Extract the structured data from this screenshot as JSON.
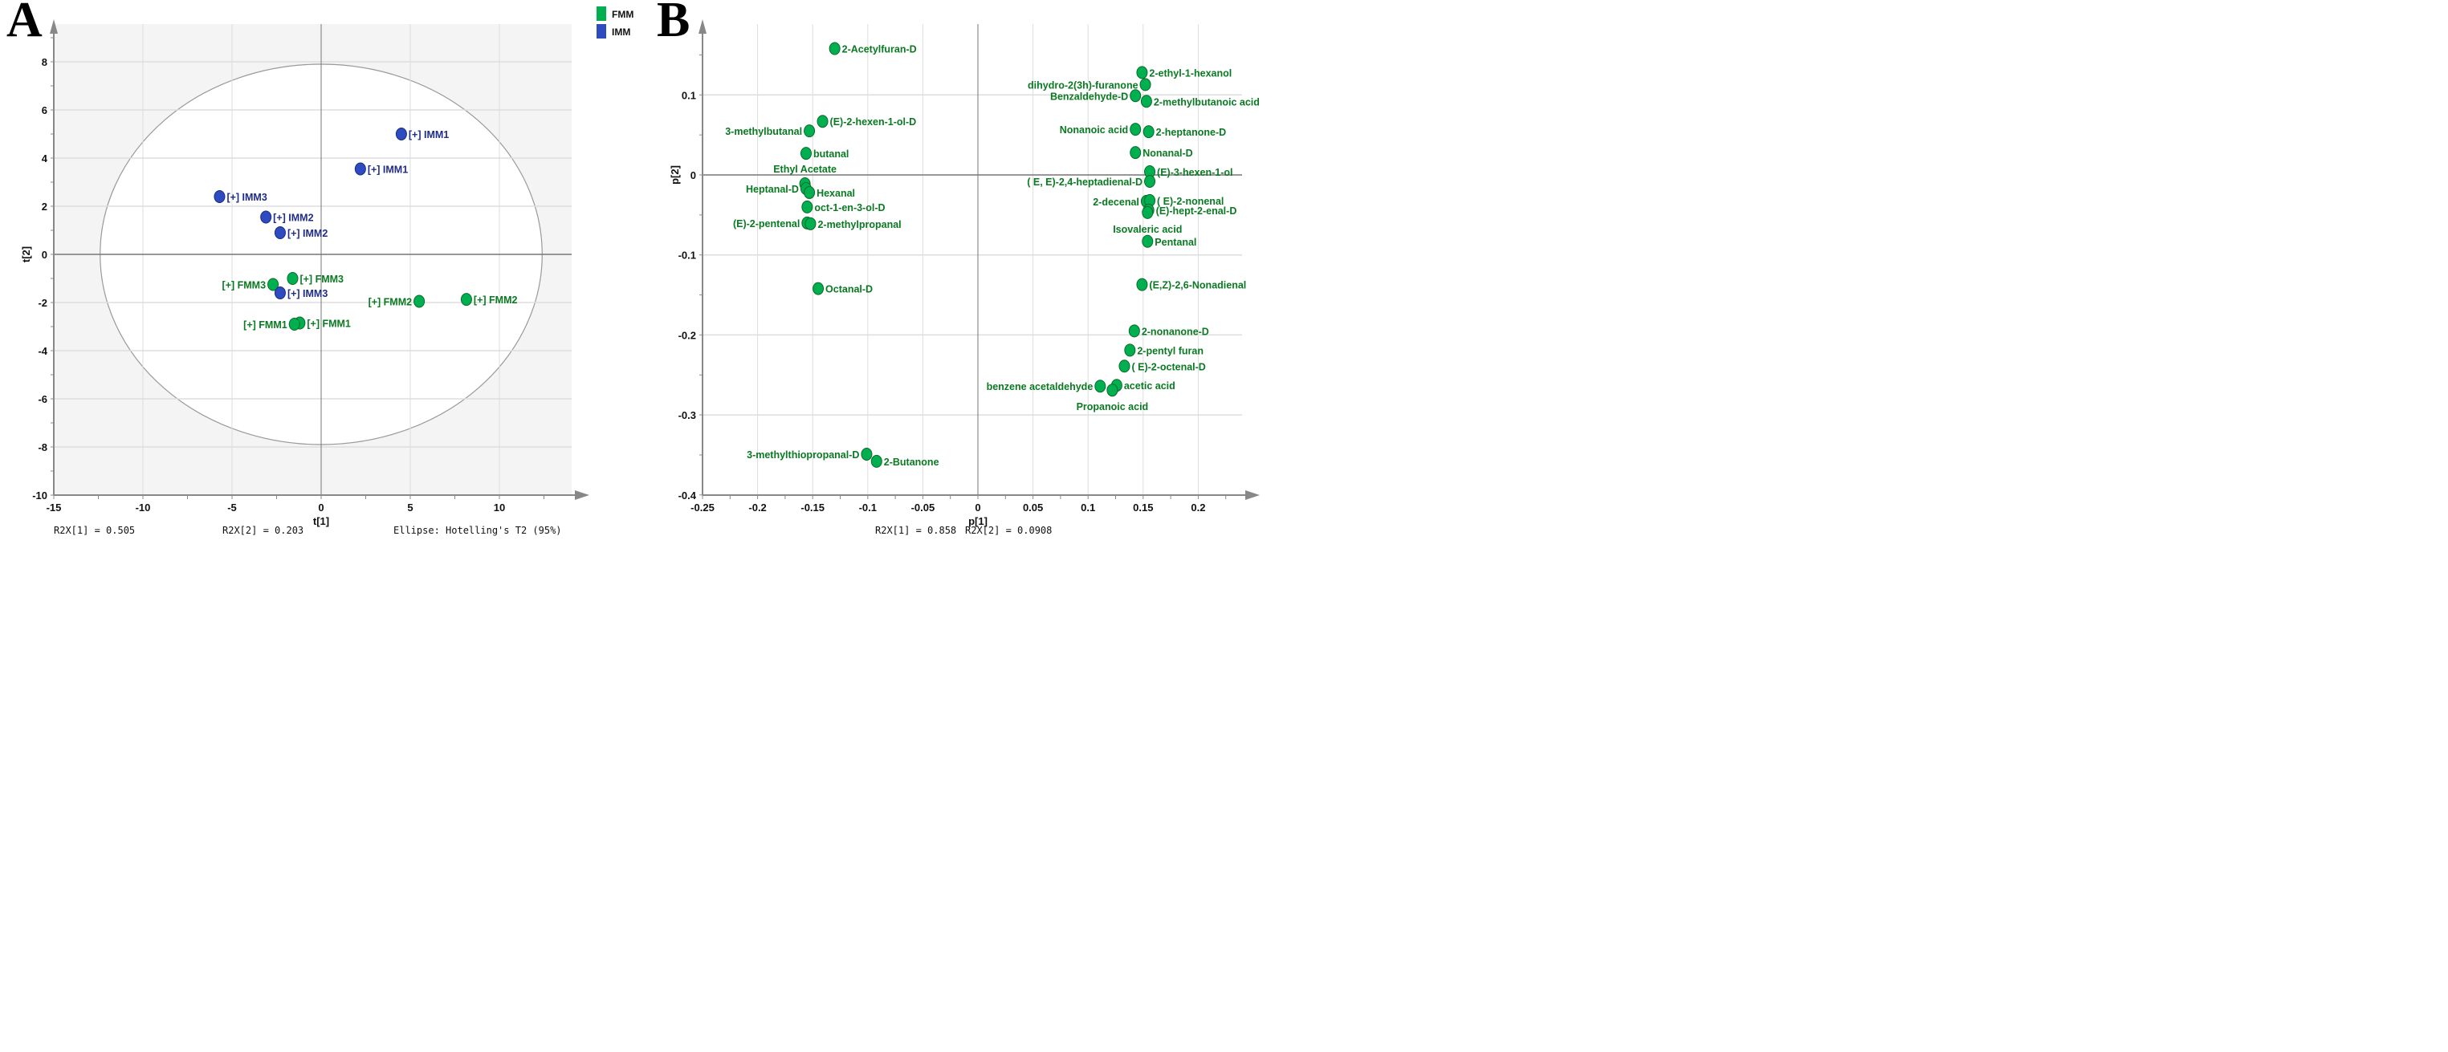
{
  "chart_data": [
    {
      "panel": "A",
      "type": "scatter",
      "title": "",
      "xlabel": "t[1]",
      "ylabel": "t[2]",
      "xlim": [
        -15,
        14.8
      ],
      "ylim": [
        -10,
        9.4
      ],
      "xticks": [
        -15,
        -10,
        -5,
        0,
        5,
        10
      ],
      "yticks": [
        -10,
        -8,
        -6,
        -4,
        -2,
        0,
        2,
        4,
        6,
        8
      ],
      "grid": true,
      "ellipse": {
        "label": "Ellipse: Hotelling's T2 (95%)",
        "rx": 12.4,
        "ry": 7.9
      },
      "stats": [
        "R2X[1] = 0.505",
        "R2X[2] = 0.203"
      ],
      "legend": {
        "position": "top-right",
        "entries": [
          {
            "name": "FMM",
            "color": "#00b050"
          },
          {
            "name": "IMM",
            "color": "#2e4bbf"
          }
        ]
      },
      "points": [
        {
          "label": "[+] IMM1",
          "group": "IMM",
          "x": 4.5,
          "y": 5.0,
          "side": "right"
        },
        {
          "label": "[+] IMM1",
          "group": "IMM",
          "x": 2.2,
          "y": 3.55,
          "side": "right"
        },
        {
          "label": "[+] IMM3",
          "group": "IMM",
          "x": -5.7,
          "y": 2.4,
          "side": "right"
        },
        {
          "label": "[+] IMM2",
          "group": "IMM",
          "x": -3.1,
          "y": 1.55,
          "side": "right"
        },
        {
          "label": "[+] IMM2",
          "group": "IMM",
          "x": -2.3,
          "y": 0.9,
          "side": "right"
        },
        {
          "label": "[+] FMM3",
          "group": "FMM",
          "x": -1.6,
          "y": -1.0,
          "side": "right"
        },
        {
          "label": "[+] FMM3",
          "group": "FMM",
          "x": -2.7,
          "y": -1.25,
          "side": "left"
        },
        {
          "label": "[+] IMM3",
          "group": "IMM",
          "x": -2.3,
          "y": -1.6,
          "side": "right"
        },
        {
          "label": "[+] FMM2",
          "group": "FMM",
          "x": 5.5,
          "y": -1.95,
          "side": "left"
        },
        {
          "label": "[+] FMM2",
          "group": "FMM",
          "x": 8.15,
          "y": -1.87,
          "side": "right"
        },
        {
          "label": "[+] FMM1",
          "group": "FMM",
          "x": -1.2,
          "y": -2.85,
          "side": "right"
        },
        {
          "label": "[+] FMM1",
          "group": "FMM",
          "x": -1.5,
          "y": -2.9,
          "side": "left"
        }
      ]
    },
    {
      "panel": "B",
      "type": "scatter",
      "title": "",
      "xlabel": "p[1]",
      "ylabel": "p[2]",
      "xlim": [
        -0.25,
        0.253
      ],
      "ylim": [
        -0.4,
        0.184
      ],
      "xticks": [
        -0.25,
        -0.2,
        -0.15,
        -0.1,
        -0.05,
        0,
        0.05,
        0.1,
        0.15,
        0.2
      ],
      "yticks": [
        -0.4,
        -0.3,
        -0.2,
        -0.1,
        0,
        0.1
      ],
      "grid": true,
      "stats": [
        "R2X[1] = 0.858",
        "R2X[2] = 0.0908"
      ],
      "color": "#00b050",
      "points": [
        {
          "label": "2-Acetylfuran-D",
          "x": -0.13,
          "y": 0.158,
          "side": "right"
        },
        {
          "label": "2-ethyl-1-hexanol",
          "x": 0.149,
          "y": 0.128,
          "side": "right"
        },
        {
          "label": "dihydro-2(3h)-furanone",
          "x": 0.152,
          "y": 0.113,
          "side": "left"
        },
        {
          "label": "Benzaldehyde-D",
          "x": 0.143,
          "y": 0.099,
          "side": "left"
        },
        {
          "label": "2-methylbutanoic acid",
          "x": 0.153,
          "y": 0.092,
          "side": "right"
        },
        {
          "label": "(E)-2-hexen-1-ol-D",
          "x": -0.141,
          "y": 0.067,
          "side": "right"
        },
        {
          "label": "3-methylbutanal",
          "x": -0.153,
          "y": 0.055,
          "side": "left"
        },
        {
          "label": "Nonanoic acid",
          "x": 0.143,
          "y": 0.057,
          "side": "left"
        },
        {
          "label": "2-heptanone-D",
          "x": 0.155,
          "y": 0.054,
          "side": "right"
        },
        {
          "label": "butanal",
          "x": -0.156,
          "y": 0.027,
          "side": "right"
        },
        {
          "label": "Nonanal-D",
          "x": 0.143,
          "y": 0.028,
          "side": "right"
        },
        {
          "label": "(E)-3-hexen-1-ol",
          "x": 0.156,
          "y": 0.004,
          "side": "right"
        },
        {
          "label": "( E, E)-2,4-heptadienal-D",
          "x": 0.156,
          "y": -0.008,
          "side": "left"
        },
        {
          "label": "Ethyl Acetate",
          "x": -0.157,
          "y": -0.011,
          "side": "above"
        },
        {
          "label": "Heptanal-D",
          "x": -0.156,
          "y": -0.017,
          "side": "left"
        },
        {
          "label": "Hexanal",
          "x": -0.153,
          "y": -0.022,
          "side": "right"
        },
        {
          "label": "2-decenal",
          "x": 0.153,
          "y": -0.033,
          "side": "left"
        },
        {
          "label": "( E)-2-nonenal",
          "x": 0.156,
          "y": -0.032,
          "side": "right"
        },
        {
          "label": "(E)-hept-2-enal-D",
          "x": 0.155,
          "y": -0.044,
          "side": "right"
        },
        {
          "label": "Isovaleric acid",
          "x": 0.154,
          "y": -0.047,
          "side": "below"
        },
        {
          "label": "oct-1-en-3-ol-D",
          "x": -0.155,
          "y": -0.04,
          "side": "right"
        },
        {
          "label": "(E)-2-pentenal",
          "x": -0.155,
          "y": -0.06,
          "side": "left"
        },
        {
          "label": "2-methylpropanal",
          "x": -0.152,
          "y": -0.061,
          "side": "right"
        },
        {
          "label": "Pentanal",
          "x": 0.154,
          "y": -0.083,
          "side": "right"
        },
        {
          "label": "Octanal-D",
          "x": -0.145,
          "y": -0.142,
          "side": "right"
        },
        {
          "label": "(E,Z)-2,6-Nonadienal",
          "x": 0.149,
          "y": -0.137,
          "side": "right"
        },
        {
          "label": "2-nonanone-D",
          "x": 0.142,
          "y": -0.195,
          "side": "right"
        },
        {
          "label": "2-pentyl furan",
          "x": 0.138,
          "y": -0.219,
          "side": "right"
        },
        {
          "label": "( E)-2-octenal-D",
          "x": 0.133,
          "y": -0.239,
          "side": "right"
        },
        {
          "label": "benzene acetaldehyde",
          "x": 0.111,
          "y": -0.264,
          "side": "left"
        },
        {
          "label": "acetic acid",
          "x": 0.126,
          "y": -0.263,
          "side": "right"
        },
        {
          "label": "Propanoic acid",
          "x": 0.122,
          "y": -0.269,
          "side": "below"
        },
        {
          "label": "3-methylthiopropanal-D",
          "x": -0.101,
          "y": -0.349,
          "side": "left"
        },
        {
          "label": "2-Butanone",
          "x": -0.092,
          "y": -0.358,
          "side": "right"
        }
      ]
    }
  ]
}
